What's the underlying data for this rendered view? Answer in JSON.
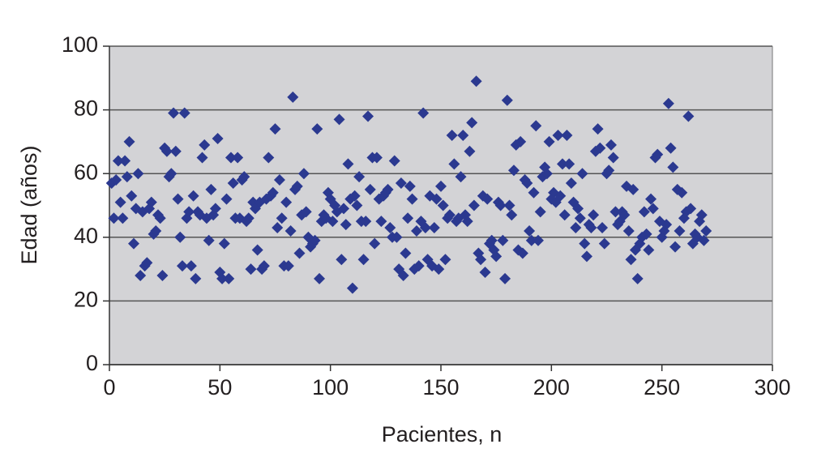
{
  "chart_data": {
    "type": "scatter",
    "x_label": "Pacientes, n",
    "y_label": "Edad (años)",
    "xlim": [
      0,
      300
    ],
    "xticks": [
      0,
      50,
      100,
      150,
      200,
      250,
      300
    ],
    "ylim": [
      0,
      100
    ],
    "yticks": [
      0,
      20,
      40,
      60,
      80,
      100
    ],
    "grid": true,
    "color": "#2b3990",
    "x": [
      1,
      2,
      3,
      4,
      5,
      6,
      7,
      8,
      9,
      10,
      11,
      12,
      13,
      14,
      15,
      16,
      17,
      18,
      19,
      20,
      21,
      22,
      23,
      24,
      25,
      26,
      27,
      28,
      29,
      30,
      31,
      32,
      33,
      34,
      35,
      36,
      37,
      38,
      39,
      40,
      41,
      42,
      43,
      44,
      45,
      46,
      47,
      48,
      49,
      50,
      51,
      52,
      53,
      54,
      55,
      56,
      57,
      58,
      59,
      60,
      61,
      62,
      63,
      64,
      65,
      66,
      67,
      68,
      69,
      70,
      71,
      72,
      73,
      74,
      75,
      76,
      77,
      78,
      79,
      80,
      81,
      82,
      83,
      84,
      85,
      86,
      87,
      88,
      89,
      90,
      91,
      92,
      93,
      94,
      95,
      96,
      97,
      98,
      99,
      100,
      101,
      102,
      103,
      104,
      105,
      106,
      107,
      108,
      109,
      110,
      111,
      112,
      113,
      114,
      115,
      116,
      117,
      118,
      119,
      120,
      121,
      122,
      123,
      124,
      125,
      126,
      127,
      128,
      129,
      130,
      131,
      132,
      133,
      134,
      135,
      136,
      137,
      138,
      139,
      140,
      141,
      142,
      143,
      144,
      145,
      146,
      147,
      148,
      149,
      150,
      151,
      152,
      153,
      154,
      155,
      156,
      157,
      158,
      159,
      160,
      161,
      162,
      163,
      164,
      165,
      166,
      167,
      168,
      169,
      170,
      171,
      172,
      173,
      174,
      175,
      176,
      177,
      178,
      179,
      180,
      181,
      182,
      183,
      184,
      185,
      186,
      187,
      188,
      189,
      190,
      191,
      192,
      193,
      194,
      195,
      196,
      197,
      198,
      199,
      200,
      201,
      202,
      203,
      204,
      205,
      206,
      207,
      208,
      209,
      210,
      211,
      212,
      213,
      214,
      215,
      216,
      217,
      218,
      219,
      220,
      221,
      222,
      223,
      224,
      225,
      226,
      227,
      228,
      229,
      230,
      231,
      232,
      233,
      234,
      235,
      236,
      237,
      238,
      239,
      240,
      241,
      242,
      243,
      244,
      245,
      246,
      247,
      248,
      249,
      250,
      251,
      252,
      253,
      254,
      255,
      256,
      257,
      258,
      259,
      260,
      261,
      262,
      263,
      264,
      265,
      266,
      267,
      268,
      269,
      270
    ],
    "values": [
      57,
      46,
      58,
      64,
      51,
      46,
      64,
      59,
      70,
      53,
      38,
      49,
      60,
      28,
      48,
      31,
      32,
      49,
      51,
      41,
      42,
      47,
      46,
      28,
      68,
      67,
      59,
      60,
      79,
      67,
      52,
      40,
      31,
      79,
      46,
      48,
      31,
      53,
      27,
      48,
      47,
      65,
      69,
      46,
      39,
      55,
      47,
      49,
      71,
      29,
      27,
      38,
      52,
      27,
      65,
      57,
      46,
      65,
      46,
      58,
      59,
      45,
      46,
      30,
      51,
      49,
      36,
      51,
      30,
      31,
      52,
      65,
      53,
      54,
      74,
      43,
      58,
      46,
      31,
      51,
      31,
      42,
      84,
      55,
      56,
      35,
      47,
      60,
      48,
      40,
      37,
      38,
      39,
      74,
      27,
      45,
      47,
      46,
      54,
      52,
      45,
      50,
      48,
      77,
      33,
      49,
      44,
      63,
      52,
      24,
      53,
      50,
      59,
      45,
      33,
      45,
      78,
      55,
      65,
      38,
      65,
      52,
      45,
      53,
      54,
      55,
      43,
      40,
      64,
      40,
      30,
      57,
      28,
      35,
      46,
      56,
      52,
      30,
      42,
      31,
      45,
      79,
      43,
      33,
      53,
      31,
      43,
      52,
      30,
      56,
      50,
      33,
      46,
      47,
      72,
      63,
      45,
      46,
      59,
      72,
      47,
      45,
      67,
      76,
      50,
      89,
      35,
      33,
      53,
      29,
      52,
      38,
      39,
      36,
      34,
      51,
      50,
      39,
      27,
      83,
      50,
      47,
      61,
      69,
      36,
      70,
      35,
      58,
      57,
      42,
      39,
      54,
      75,
      39,
      48,
      59,
      62,
      60,
      70,
      52,
      54,
      51,
      72,
      53,
      63,
      47,
      72,
      63,
      57,
      51,
      43,
      49,
      46,
      60,
      38,
      34,
      44,
      43,
      47,
      67,
      74,
      68,
      43,
      38,
      60,
      61,
      69,
      65,
      48,
      44,
      45,
      48,
      47,
      56,
      42,
      33,
      55,
      36,
      27,
      38,
      40,
      48,
      41,
      36,
      52,
      49,
      65,
      66,
      45,
      40,
      42,
      44,
      82,
      68,
      62,
      37,
      55,
      42,
      54,
      46,
      48,
      78,
      49,
      38,
      41,
      40,
      45,
      47,
      39,
      42
    ]
  }
}
